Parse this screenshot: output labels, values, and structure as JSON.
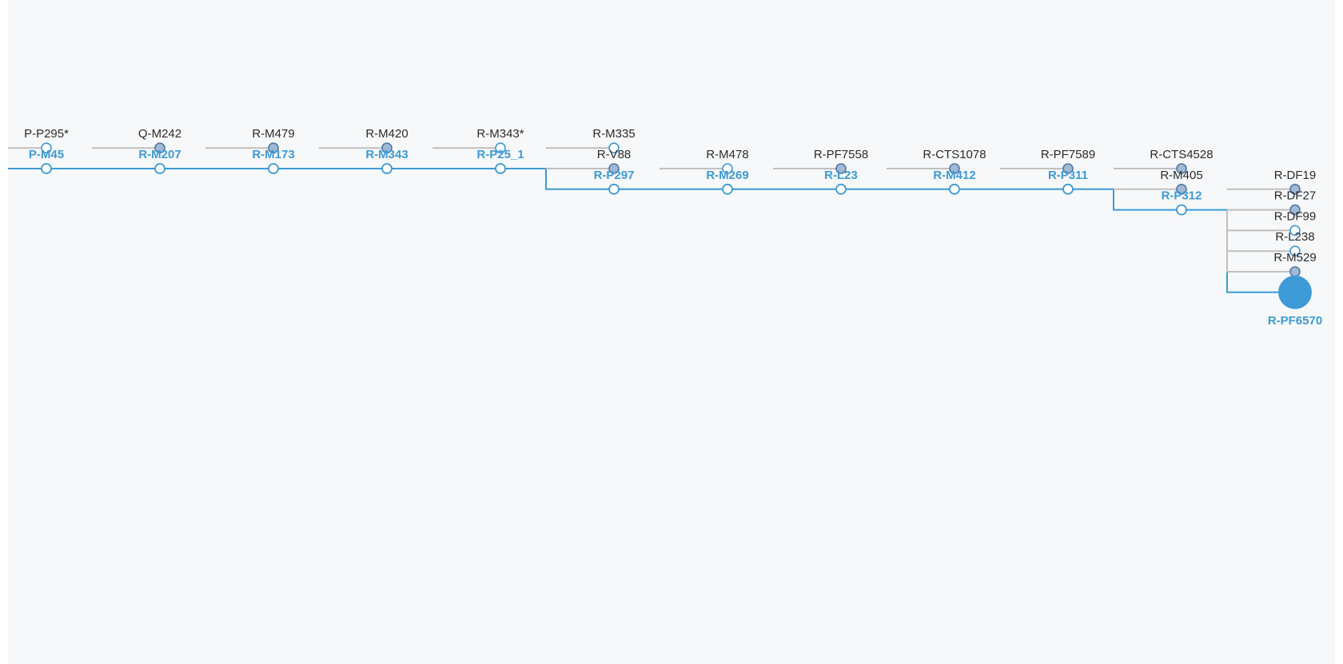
{
  "colors": {
    "path": "#3e9ad6",
    "branch": "#bfbfbf",
    "filled_node": "#a2b8d4",
    "filled_node_stroke": "#4f79a8",
    "open_node_fill": "#ffffff",
    "label": "#2b2b2b",
    "background": "#f6f8fa"
  },
  "tree": {
    "path": [
      "P-M45",
      "R-M207",
      "R-M173",
      "R-M343",
      "R-P25_1",
      "R-P297",
      "R-M269",
      "R-L23",
      "R-M412",
      "R-P311",
      "R-P312",
      "R-PF6570"
    ],
    "terminal": "R-PF6570",
    "side_branches": [
      {
        "parent": "P-M45",
        "label": "P-P295*",
        "filled": false
      },
      {
        "parent": "R-M207",
        "label": "Q-M242",
        "filled": true
      },
      {
        "parent": "R-M173",
        "label": "R-M479",
        "filled": true
      },
      {
        "parent": "R-M343",
        "label": "R-M420",
        "filled": true
      },
      {
        "parent": "R-P25_1",
        "label": "R-M343*",
        "filled": false
      },
      {
        "parent": "R-P297",
        "label": "R-M335",
        "filled": false
      },
      {
        "parent": "R-P297",
        "label": "R-V88",
        "filled": true
      },
      {
        "parent": "R-M269",
        "label": "R-M478",
        "filled": false
      },
      {
        "parent": "R-L23",
        "label": "R-PF7558",
        "filled": true
      },
      {
        "parent": "R-M412",
        "label": "R-CTS1078",
        "filled": true
      },
      {
        "parent": "R-P311",
        "label": "R-PF7589",
        "filled": true
      },
      {
        "parent": "R-P312",
        "label": "R-CTS4528",
        "filled": true
      },
      {
        "parent": "R-P312",
        "label": "R-M405",
        "filled": true
      },
      {
        "parent": "R-PF6570",
        "label": "R-DF19",
        "filled": true
      },
      {
        "parent": "R-PF6570",
        "label": "R-DF27",
        "filled": true
      },
      {
        "parent": "R-PF6570",
        "label": "R-DF99",
        "filled": false
      },
      {
        "parent": "R-PF6570",
        "label": "R-L238",
        "filled": false
      },
      {
        "parent": "R-PF6570",
        "label": "R-M529",
        "filled": true
      }
    ]
  }
}
